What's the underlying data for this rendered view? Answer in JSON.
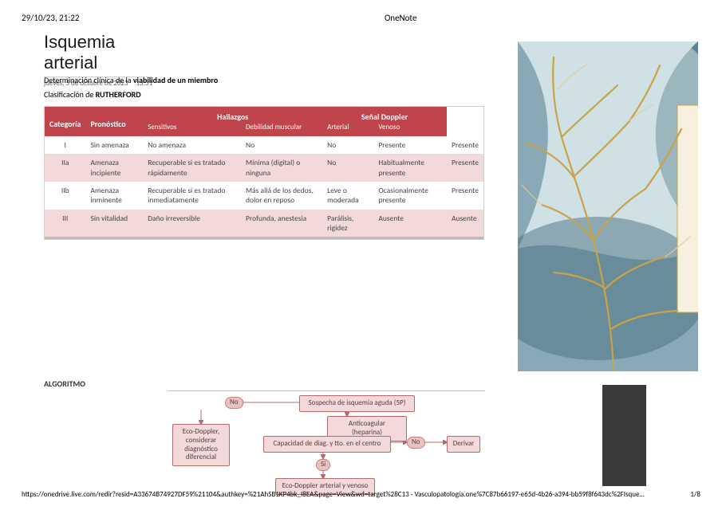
{
  "header": {
    "timestamp": "29/10/23, 21:22",
    "app": "OneNote"
  },
  "title": {
    "text": "Isquemia arterial",
    "date": "jueves, 5 de octubre de 2023",
    "time": "13:31"
  },
  "sections": {
    "determination_prefix": "Determinación clínica de la ",
    "determination_bold": "viabilidad de un miembro",
    "classification_prefix": "Clasificación de ",
    "classification_bold": "RUTHERFORD",
    "algorithm_label": "ALGORITMO"
  },
  "rutherford": {
    "header_row1": [
      "Categoría",
      "Pronóstico",
      "Hallazgos",
      "Señal Doppler"
    ],
    "header_row2": [
      "Sensitivos",
      "Debilidad muscular",
      "Arterial",
      "Venoso"
    ],
    "rows": [
      {
        "shade": "alt",
        "cells": [
          "I",
          "Sin amenaza",
          "No amenaza",
          "No",
          "No",
          "Presente",
          "Presente"
        ]
      },
      {
        "shade": "shade",
        "cells": [
          "IIa",
          "Amenaza incipiente",
          "Recuperable si es tratado rápidamente",
          "Mínima (digital) o ninguna",
          "No",
          "Habitualmente presente",
          "Presente"
        ]
      },
      {
        "shade": "alt",
        "cells": [
          "IIb",
          "Amenaza inminente",
          "Recuperable si es tratado inmediatamente",
          "Más allá de los dedos, dolor en reposo",
          "Leve o moderada",
          "Ocasionalmente presente",
          "Presente"
        ]
      },
      {
        "shade": "shade",
        "cells": [
          "III",
          "Sin vitalidad",
          "Daño irreversible",
          "Profunda, anestesia",
          "Parálisis, rigidez",
          "Ausente",
          "Ausente"
        ]
      }
    ],
    "colors": {
      "header_bg": "#c0444b",
      "header_fg": "#ffffff",
      "row_alt_bg": "#ffffff",
      "row_shade_bg": "#f3d9da",
      "border": "#d0d0d0"
    }
  },
  "flowchart": {
    "nodes": {
      "suspect": {
        "label": "Sospecha de isquemia aguda (5P)"
      },
      "no1": {
        "label": "No"
      },
      "eco": {
        "label": "Eco-Doppler, considerar diagnóstico diferencial"
      },
      "anticoag": {
        "label": "Anticoagular (heparina)"
      },
      "capacity": {
        "label": "Capacidad de diag. y tto. en el centro"
      },
      "no2": {
        "label": "No"
      },
      "derivar": {
        "label": "Derivar"
      },
      "si": {
        "label": "Sí"
      },
      "ecoav": {
        "label": "Eco-Doppler arterial y venoso"
      }
    },
    "colors": {
      "node_bg": "#f3d9da",
      "node_border": "#b36a6a",
      "pill_bg": "#e9c2c2",
      "text": "#5a3a3a",
      "arrow": "#b36a6a"
    }
  },
  "decoration": {
    "bg_dark_block": "#3a3a3a",
    "art": {
      "teal_dark": "#4a6f80",
      "teal_mid": "#7fa3af",
      "teal_light": "#cfe1e5",
      "gold": "#c9a24a",
      "gold_light": "#e3cd99",
      "cream": "#f7f0df"
    }
  },
  "footer": {
    "url": "https://onedrive.live.com/redir?resid=A33674B74927DF59%21104&authkey=%21AhSB1KP4bk_I8EA&page=View&wd=target%28C13 - Vasculopatología.one%7C87b66197-e65d-4b26-a394-bb59f8f643dc%2FIsque…",
    "page": "1/8"
  }
}
